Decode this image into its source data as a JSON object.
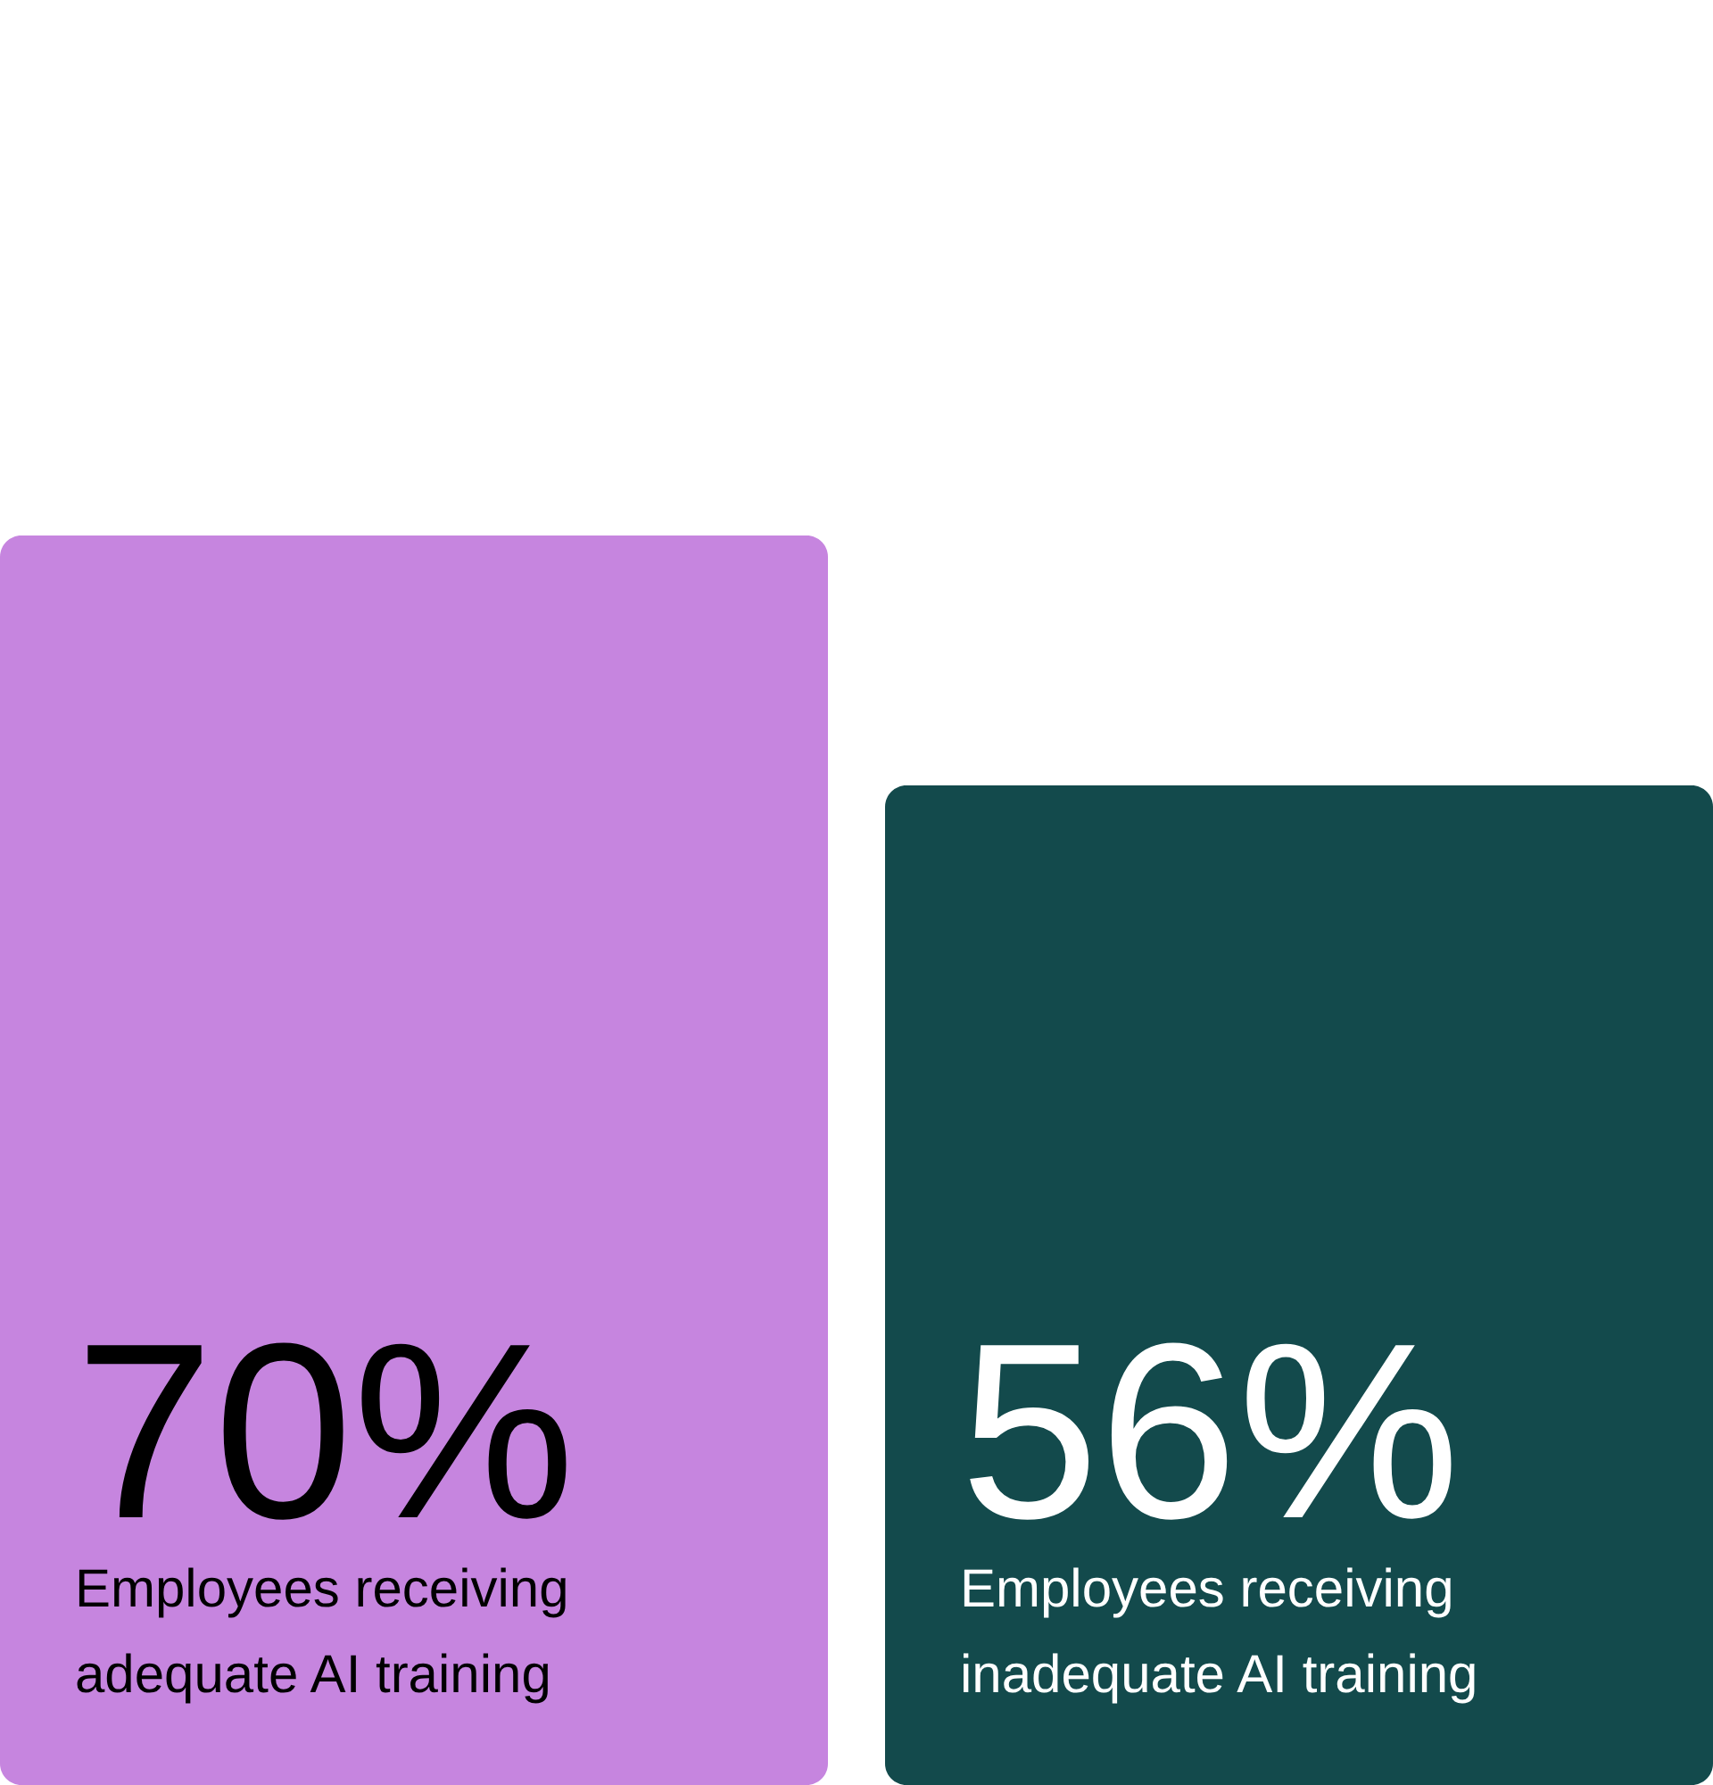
{
  "chart_data": {
    "type": "bar",
    "categories": [
      "Employees receiving adequate AI training",
      "Employees receiving inadequate AI training"
    ],
    "values": [
      70,
      56
    ],
    "colors": [
      "#c685df",
      "#134a4c"
    ],
    "value_labels": [
      "70%",
      "56%"
    ]
  }
}
